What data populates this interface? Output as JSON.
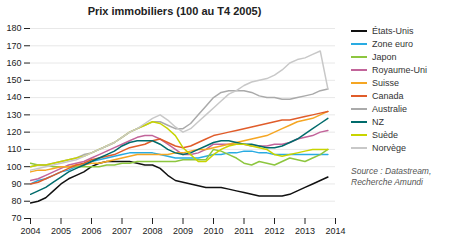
{
  "chart_data": {
    "type": "line",
    "title": "Prix immobiliers (100 au T4 2005)",
    "caption": "Source : Datastream,\nRecherche Amundi",
    "x": [
      2004,
      2004.25,
      2004.5,
      2004.75,
      2005,
      2005.25,
      2005.5,
      2005.75,
      2006,
      2006.25,
      2006.5,
      2006.75,
      2007,
      2007.25,
      2007.5,
      2007.75,
      2008,
      2008.25,
      2008.5,
      2008.75,
      2009,
      2009.25,
      2009.5,
      2009.75,
      2010,
      2010.25,
      2010.5,
      2010.75,
      2011,
      2011.25,
      2011.5,
      2011.75,
      2012,
      2012.25,
      2012.5,
      2012.75,
      2013,
      2013.25,
      2013.5,
      2013.75
    ],
    "xlim": [
      2004,
      2014
    ],
    "xticks": [
      2004,
      2005,
      2006,
      2007,
      2008,
      2009,
      2010,
      2011,
      2012,
      2013,
      2014
    ],
    "ylim": [
      70,
      180
    ],
    "yticks": [
      70,
      80,
      90,
      100,
      110,
      120,
      130,
      140,
      150,
      160,
      170,
      180
    ],
    "grid": true,
    "series": [
      {
        "name": "États-Unis",
        "color": "#111111",
        "values": [
          79,
          80,
          82,
          86,
          90,
          93,
          95,
          97,
          100,
          102,
          103,
          103,
          103,
          103,
          102,
          101,
          101,
          99,
          95,
          92,
          91,
          90,
          89,
          88,
          88,
          88,
          87,
          86,
          85,
          84,
          83,
          83,
          83,
          83,
          84,
          86,
          88,
          90,
          92,
          94
        ]
      },
      {
        "name": "Zone euro",
        "color": "#29abe2",
        "values": [
          90,
          92,
          93,
          95,
          97,
          98,
          100,
          101,
          103,
          104,
          105,
          106,
          107,
          108,
          108,
          108,
          108,
          107,
          106,
          105,
          105,
          105,
          105,
          106,
          107,
          107,
          108,
          108,
          109,
          109,
          108,
          108,
          107,
          107,
          107,
          107,
          107,
          107,
          107,
          107
        ]
      },
      {
        "name": "Japon",
        "color": "#8dc63f",
        "values": [
          102,
          101,
          101,
          100,
          100,
          100,
          100,
          100,
          100,
          100,
          101,
          101,
          102,
          102,
          103,
          103,
          103,
          103,
          103,
          103,
          104,
          104,
          104,
          104,
          110,
          109,
          107,
          105,
          102,
          101,
          103,
          102,
          101,
          103,
          105,
          104,
          103,
          105,
          107,
          110
        ]
      },
      {
        "name": "Royaume-Uni",
        "color": "#c2649a",
        "values": [
          92,
          93,
          95,
          97,
          99,
          101,
          102,
          103,
          105,
          107,
          109,
          111,
          113,
          115,
          117,
          118,
          118,
          116,
          113,
          110,
          107,
          107,
          108,
          110,
          113,
          113,
          113,
          113,
          113,
          112,
          112,
          112,
          113,
          113,
          114,
          116,
          117,
          118,
          120,
          121
        ]
      },
      {
        "name": "Suisse",
        "color": "#f5a623",
        "values": [
          97,
          98,
          98,
          99,
          100,
          100,
          101,
          101,
          102,
          102,
          103,
          104,
          105,
          106,
          107,
          107,
          107,
          107,
          107,
          108,
          108,
          109,
          110,
          110,
          111,
          112,
          113,
          114,
          115,
          116,
          117,
          118,
          120,
          122,
          124,
          126,
          127,
          128,
          130,
          132
        ]
      },
      {
        "name": "Canada",
        "color": "#e05c2a",
        "values": [
          90,
          91,
          93,
          95,
          97,
          99,
          101,
          102,
          104,
          105,
          106,
          107,
          109,
          111,
          112,
          113,
          115,
          116,
          114,
          112,
          111,
          112,
          114,
          116,
          118,
          119,
          120,
          121,
          122,
          123,
          124,
          125,
          126,
          127,
          127,
          128,
          129,
          130,
          131,
          132
        ]
      },
      {
        "name": "Australie",
        "color": "#aaaaaa",
        "values": [
          100,
          101,
          101,
          102,
          103,
          104,
          105,
          107,
          108,
          110,
          112,
          114,
          117,
          120,
          122,
          124,
          126,
          126,
          124,
          122,
          122,
          125,
          130,
          135,
          140,
          143,
          144,
          144,
          144,
          143,
          141,
          140,
          140,
          139,
          139,
          140,
          141,
          142,
          144,
          145
        ]
      },
      {
        "name": "NZ",
        "color": "#006b6b",
        "values": [
          84,
          86,
          88,
          91,
          94,
          97,
          99,
          101,
          103,
          105,
          107,
          109,
          112,
          114,
          115,
          115,
          115,
          113,
          110,
          108,
          107,
          108,
          110,
          112,
          114,
          115,
          115,
          114,
          113,
          113,
          112,
          111,
          111,
          112,
          114,
          116,
          119,
          122,
          125,
          128
        ]
      },
      {
        "name": "Suède",
        "color": "#c8d400",
        "values": [
          100,
          101,
          101,
          102,
          103,
          104,
          105,
          106,
          108,
          110,
          112,
          114,
          117,
          120,
          122,
          124,
          126,
          125,
          122,
          118,
          111,
          107,
          103,
          103,
          107,
          110,
          112,
          113,
          113,
          112,
          111,
          110,
          107,
          106,
          107,
          108,
          109,
          110,
          110,
          110
        ]
      },
      {
        "name": "Norvège",
        "color": "#c8c8c8",
        "values": [
          98,
          99,
          100,
          101,
          102,
          103,
          104,
          106,
          108,
          110,
          112,
          114,
          117,
          120,
          122,
          125,
          128,
          130,
          127,
          123,
          120,
          122,
          126,
          130,
          134,
          138,
          142,
          144,
          147,
          149,
          150,
          151,
          153,
          156,
          160,
          162,
          163,
          165,
          167,
          145
        ]
      }
    ]
  }
}
